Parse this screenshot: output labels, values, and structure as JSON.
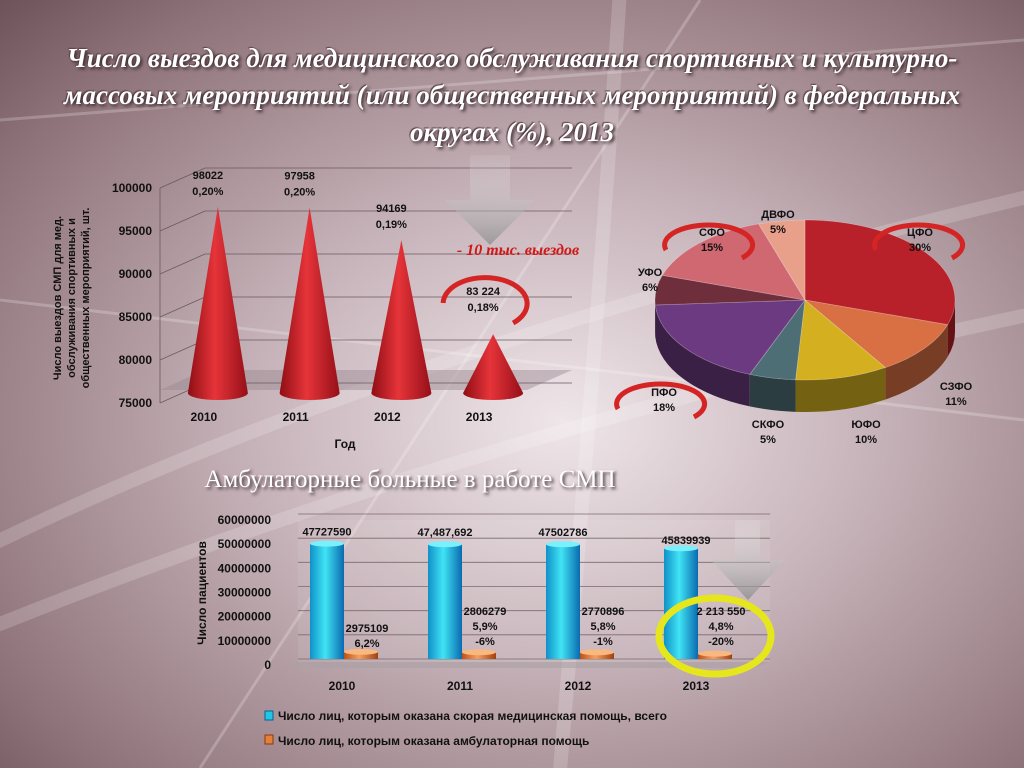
{
  "title": "Число выездов для медицинского обслуживания спортивных и культурно-массовых мероприятий (или общественных мероприятий) в федеральных округах (%), 2013",
  "subtitle": "Амбулаторные больные в работе СМП",
  "colors": {
    "cone": "#c8202a",
    "bar_main": "#1fc8e0",
    "bar_amb": "#e5803a",
    "ring_red": "#d42424",
    "ring_yellow": "#e6e61c"
  },
  "chart_data": [
    {
      "type": "bar",
      "mark_shape": "cone",
      "categories": [
        "2010",
        "2011",
        "2012",
        "2013"
      ],
      "values": [
        98022,
        97958,
        94169,
        83224
      ],
      "value_labels": [
        "98022",
        "97958",
        "94169",
        "83 224"
      ],
      "percent_labels": [
        "0,20%",
        "0,20%",
        "0,19%",
        "0,18%"
      ],
      "ylim": [
        75000,
        100000
      ],
      "yticks": [
        75000,
        80000,
        85000,
        90000,
        95000,
        100000
      ],
      "ytick_labels": [
        "75000",
        "80000",
        "85000",
        "90000",
        "95000",
        "100000"
      ],
      "xlabel": "Год",
      "ylabel": "Число выездов СМП для мед. обслуживания спортивных и общественных мероприятий, шт.",
      "annotation": "- 10 тыс. выездов",
      "grid": true
    },
    {
      "type": "pie",
      "labels": [
        "ЦФО",
        "СЗФО",
        "ЮФО",
        "СКФО",
        "ПФО",
        "УФО",
        "СФО",
        "ДВФО"
      ],
      "values": [
        30,
        11,
        10,
        5,
        18,
        6,
        15,
        5
      ],
      "percent_labels": [
        "30%",
        "11%",
        "10%",
        "5%",
        "18%",
        "6%",
        "15%",
        "5%"
      ],
      "colors": [
        "#b8202a",
        "#d87044",
        "#d4b020",
        "#4e6e76",
        "#6c3a80",
        "#6e2e3c",
        "#d06872",
        "#e8a08a"
      ]
    },
    {
      "type": "bar",
      "categories": [
        "2010",
        "2011",
        "2012",
        "2013"
      ],
      "series": [
        {
          "name": "Число лиц, которым оказана скорая медицинская помощь, всего",
          "values": [
            47727590,
            47487692,
            47502786,
            45839939
          ],
          "labels": [
            "47727590",
            "47,487,692",
            "47502786",
            "45839939"
          ]
        },
        {
          "name": "Число лиц, которым оказана амбулаторная помощь",
          "values": [
            2975109,
            2806279,
            2770896,
            2213550
          ],
          "labels": [
            "2975109",
            "2806279",
            "2770896",
            "2 213 550"
          ],
          "percent_labels": [
            "6,2%",
            "5,9%",
            "5,8%",
            "4,8%"
          ],
          "change_labels": [
            "",
            "-6%",
            "-1%",
            "-20%"
          ]
        }
      ],
      "ylim": [
        0,
        60000000
      ],
      "yticks": [
        0,
        10000000,
        20000000,
        30000000,
        40000000,
        50000000,
        60000000
      ],
      "ytick_labels": [
        "0",
        "10000000",
        "20000000",
        "30000000",
        "40000000",
        "50000000",
        "60000000"
      ],
      "ylabel": "Число пациентов",
      "legend": "bottom",
      "grid": true
    }
  ]
}
